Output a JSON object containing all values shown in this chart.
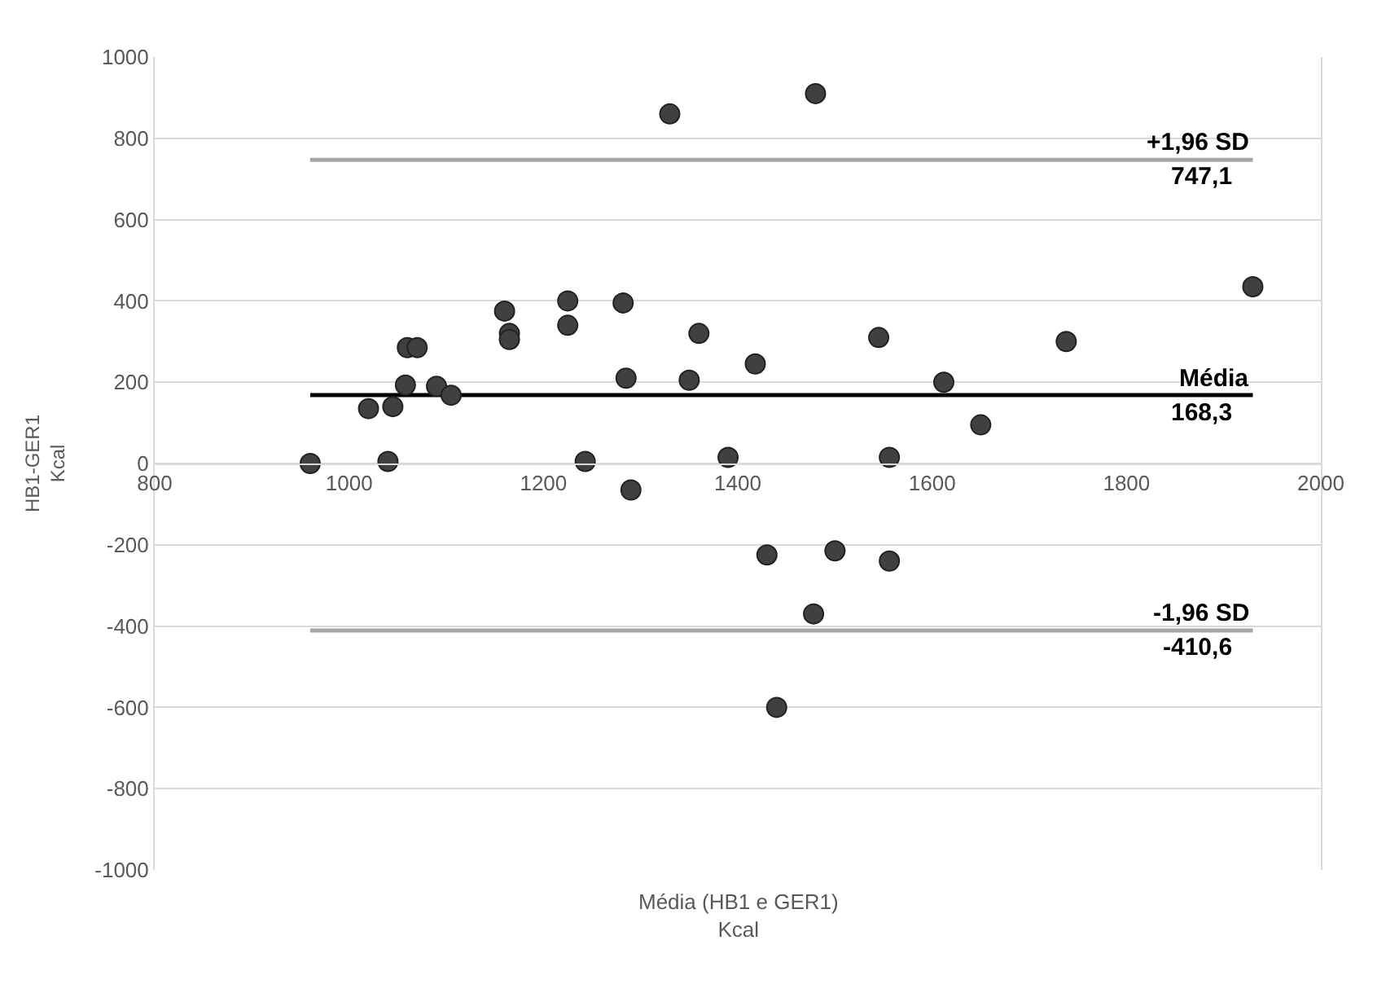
{
  "chart_data": {
    "type": "scatter",
    "xlabel": "Média (HB1 e GER1)\nKcal",
    "ylabel": "HB1-GER1\nKcal",
    "x": [
      960,
      1020,
      1045,
      1040,
      1058,
      1060,
      1070,
      1090,
      1105,
      1160,
      1165,
      1165,
      1225,
      1225,
      1243,
      1282,
      1285,
      1290,
      1330,
      1350,
      1360,
      1390,
      1418,
      1430,
      1440,
      1480,
      1478,
      1500,
      1545,
      1556,
      1556,
      1612,
      1650,
      1738,
      1930
    ],
    "series": [
      {
        "color": "#404040",
        "values": [
          0,
          135,
          140,
          5,
          193,
          285,
          285,
          190,
          168,
          375,
          320,
          305,
          400,
          340,
          5,
          395,
          210,
          -65,
          860,
          205,
          320,
          15,
          245,
          -225,
          -600,
          910,
          -370,
          -215,
          310,
          15,
          -240,
          200,
          95,
          300,
          435
        ]
      }
    ],
    "marker": "circle",
    "grid": "y",
    "xlim": [
      800,
      2000
    ],
    "xticks": [
      800,
      1000,
      1200,
      1400,
      1600,
      1800,
      2000
    ],
    "ylim": [
      -1000,
      1000
    ],
    "yticks": [
      -1000,
      -800,
      -600,
      -400,
      -200,
      0,
      200,
      400,
      600,
      800,
      1000
    ],
    "ref_lines": [
      {
        "axis": "y",
        "value": 747.1,
        "label": "+1,96 SD\n747,1",
        "color": "#a6a6a6"
      },
      {
        "axis": "y",
        "value": 168.3,
        "label": "Média\n168,3",
        "color": "#000000"
      },
      {
        "axis": "y",
        "value": -410.6,
        "label": "-1,96 SD\n-410,6",
        "color": "#a6a6a6"
      }
    ]
  }
}
